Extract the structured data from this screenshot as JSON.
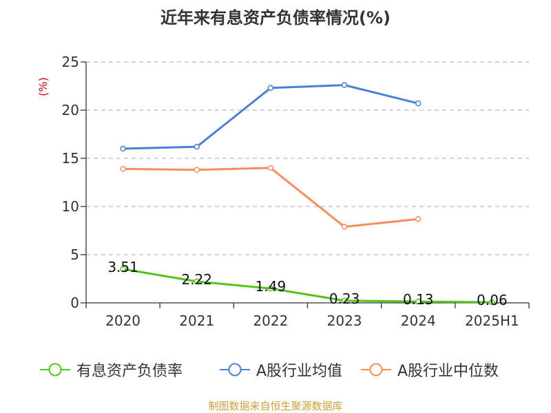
{
  "title": "近年来有息资产负债率情况(%)",
  "source": "制图数据来自恒生聚源数据库",
  "colors": {
    "series": [
      "#52c41a",
      "#4a7fd6",
      "#f28e5b"
    ],
    "axis": "#333333",
    "grid": "#bbbbbb",
    "unit": "#cc0000"
  },
  "chart_data": {
    "type": "line",
    "title": "近年来有息资产负债率情况(%)",
    "xlabel": "",
    "ylabel": "(%)",
    "categories": [
      "2020",
      "2021",
      "2022",
      "2023",
      "2024",
      "2025H1"
    ],
    "ylim": [
      0,
      25
    ],
    "yticks": [
      0,
      5,
      10,
      15,
      20,
      25
    ],
    "grid": true,
    "legend_position": "bottom",
    "series": [
      {
        "name": "有息资产负债率",
        "values": [
          3.51,
          2.22,
          1.49,
          0.23,
          0.13,
          0.06
        ],
        "labels": [
          "3.51",
          "2.22",
          "1.49",
          "0.23",
          "0.13",
          "0.06"
        ],
        "show_labels": true
      },
      {
        "name": "A股行业均值",
        "values": [
          16.0,
          16.2,
          22.3,
          22.6,
          20.7,
          null
        ],
        "show_labels": false
      },
      {
        "name": "A股行业中位数",
        "values": [
          13.9,
          13.8,
          14.0,
          7.9,
          8.7,
          null
        ],
        "show_labels": false
      }
    ]
  }
}
